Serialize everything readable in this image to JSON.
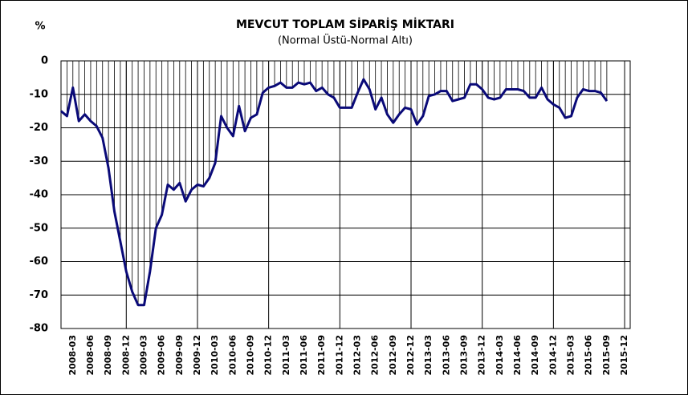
{
  "chart_data": {
    "type": "line",
    "title": "MEVCUT TOPLAM SİPARİŞ MİKTARI",
    "subtitle": "(Normal Üstü-Normal Altı)",
    "y_label": "%",
    "categories": [
      null,
      null,
      "2008-03",
      null,
      null,
      "2008-06",
      null,
      null,
      "2008-09",
      null,
      null,
      "2008-12",
      null,
      null,
      "2009-03",
      null,
      null,
      "2009-06",
      null,
      null,
      "2009-09",
      null,
      null,
      "2009-12",
      null,
      null,
      "2010-03",
      null,
      null,
      "2010-06",
      null,
      null,
      "2010-09",
      null,
      null,
      "2010-12",
      null,
      null,
      "2011-03",
      null,
      null,
      "2011-06",
      null,
      null,
      "2011-09",
      null,
      null,
      "2011-12",
      null,
      null,
      "2012-03",
      null,
      null,
      "2012-06",
      null,
      null,
      "2012-09",
      null,
      null,
      "2012-12",
      null,
      null,
      "2013-03",
      null,
      null,
      "2013-06",
      null,
      null,
      "2013-09",
      null,
      null,
      "2013-12",
      null,
      null,
      "2014-03",
      null,
      null,
      "2014-06",
      null,
      null,
      "2014-09",
      null,
      null,
      "2014-12",
      null,
      null,
      "2015-03",
      null,
      null,
      "2015-06",
      null,
      null,
      "2015-09",
      null,
      null,
      "2015-12"
    ],
    "series": [
      {
        "name": "MEVCUT TOPLAM SİPARİŞ MİKTARI",
        "color": "#0a0a78",
        "values": [
          -15,
          -16.5,
          -8,
          -18,
          -16,
          -18,
          -19.5,
          -23,
          -32,
          -45,
          -54,
          -63,
          -69,
          -73,
          -73,
          -63,
          -50,
          -46,
          -37,
          -38.5,
          -36.5,
          -42,
          -38.5,
          -37,
          -37.5,
          -35,
          -30.5,
          -16.5,
          -20,
          -22.5,
          -13.5,
          -21,
          -17,
          -16,
          -9.5,
          -8,
          -7.5,
          -6.5,
          -8,
          -8,
          -6.5,
          -7,
          -6.5,
          -9,
          -8,
          -10,
          -11,
          -14,
          -14,
          -14,
          -9.5,
          -5.5,
          -8.5,
          -14.5,
          -11,
          -16,
          -18.5,
          -16,
          -14,
          -14.5,
          -19,
          -16.5,
          -10.5,
          -10,
          -9,
          -9,
          -12,
          -11.5,
          -11,
          -7,
          -7,
          -8.5,
          -11,
          -11.5,
          -11,
          -8.5,
          -8.5,
          -8.5,
          -9,
          -11,
          -11,
          -8,
          -11.5,
          -13,
          -14,
          -17,
          -16.5,
          -11,
          -8.5,
          -9,
          -9,
          -9.5,
          -12,
          null,
          null,
          null
        ]
      }
    ],
    "ylim": [
      -80,
      0
    ],
    "yticks": [
      -80,
      -70,
      -60,
      -50,
      -40,
      -30,
      -20,
      -10,
      0
    ],
    "grid": true
  }
}
